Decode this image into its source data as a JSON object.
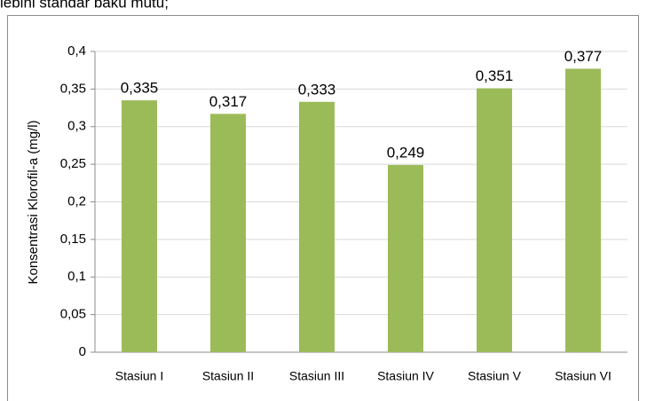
{
  "text_above": "lebihi  standar  baku  mutu;",
  "chart_data": {
    "type": "bar",
    "ylabel": "Konsentrasi Klorofil-a (mg/l)",
    "categories": [
      "Stasiun I",
      "Stasiun II",
      "Stasiun III",
      "Stasiun IV",
      "Stasiun V",
      "Stasiun VI"
    ],
    "values": [
      0.335,
      0.317,
      0.333,
      0.249,
      0.351,
      0.377
    ],
    "value_labels": [
      "0,335",
      "0,317",
      "0,333",
      "0,249",
      "0,351",
      "0,377"
    ],
    "color": "#9bbb59",
    "ylim": [
      0,
      0.4
    ],
    "yticks": [
      0,
      {
        "value": 0.05,
        "label": "0,05"
      },
      {
        "value": 0.1,
        "label": "0,1"
      },
      {
        "value": 0.15,
        "label": "0,15"
      },
      {
        "value": 0.2,
        "label": "0,2"
      },
      {
        "value": 0.25,
        "label": "0,25"
      },
      {
        "value": 0.3,
        "label": "0,3"
      },
      {
        "value": 0.35,
        "label": "0,35"
      },
      {
        "value": 0.4,
        "label": "0,4"
      }
    ],
    "grid": true
  }
}
